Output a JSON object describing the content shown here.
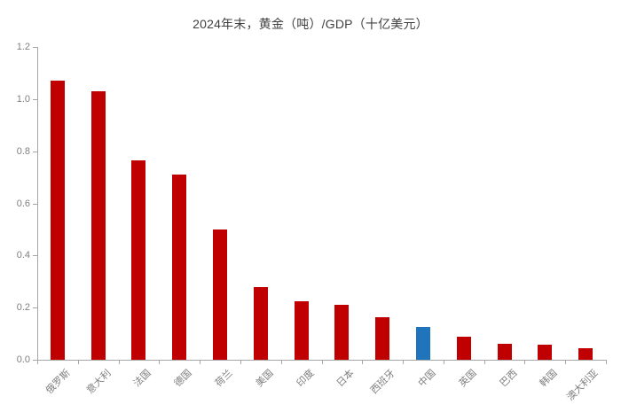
{
  "chart_data": {
    "type": "bar",
    "title": "2024年末，黄金（吨）/GDP（十亿美元）",
    "categories": [
      "俄罗斯",
      "意大利",
      "法国",
      "德国",
      "荷兰",
      "美国",
      "印度",
      "日本",
      "西班牙",
      "中国",
      "英国",
      "巴西",
      "韩国",
      "澳大利亚"
    ],
    "values": [
      1.07,
      1.03,
      0.765,
      0.71,
      0.5,
      0.28,
      0.225,
      0.21,
      0.163,
      0.127,
      0.09,
      0.062,
      0.057,
      0.045
    ],
    "highlight_category": "中国",
    "xlabel": "",
    "ylabel": "",
    "ylim": [
      0,
      1.2
    ],
    "ytick_labels": [
      "0.0",
      "0.2",
      "0.4",
      "0.6",
      "0.8",
      "1.0",
      "1.2"
    ],
    "grid": false,
    "legend": "none"
  },
  "colors": {
    "bar_default": "#C00000",
    "bar_highlight": "#1F74BC",
    "axis": "#A6A6A6",
    "tick_label": "#7F7F7F",
    "title_text": "#404040",
    "background": "#FFFFFF"
  }
}
